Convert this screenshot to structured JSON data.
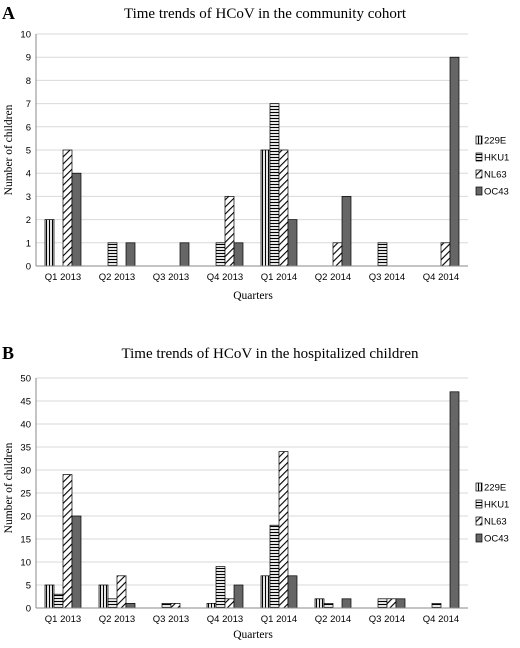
{
  "chart_data": [
    {
      "panel": "A",
      "type": "bar",
      "title": "Time trends of HCoV in the community cohort",
      "xlabel": "Quarters",
      "ylabel": "Number of children",
      "ylim": [
        0,
        10
      ],
      "ytick_step": 1,
      "grid": "horizontal",
      "legend_position": "right",
      "categories": [
        "Q1 2013",
        "Q2 2013",
        "Q3 2013",
        "Q4 2013",
        "Q1 2014",
        "Q2 2014",
        "Q3 2014",
        "Q4 2014"
      ],
      "series": [
        {
          "name": "229E",
          "pattern": "vertical",
          "values": [
            2,
            0,
            0,
            0,
            5,
            0,
            0,
            0
          ]
        },
        {
          "name": "HKU1",
          "pattern": "horizontal",
          "values": [
            0,
            1,
            0,
            1,
            7,
            0,
            1,
            0
          ]
        },
        {
          "name": "NL63",
          "pattern": "diagonal",
          "values": [
            5,
            0,
            0,
            3,
            5,
            1,
            0,
            1
          ]
        },
        {
          "name": "OC43",
          "pattern": "solid",
          "values": [
            4,
            1,
            1,
            1,
            2,
            3,
            0,
            9
          ]
        }
      ]
    },
    {
      "panel": "B",
      "type": "bar",
      "title": "Time trends of HCoV in the hospitalized children",
      "xlabel": "Quarters",
      "ylabel": "Number of children",
      "ylim": [
        0,
        50
      ],
      "ytick_step": 5,
      "grid": "horizontal",
      "legend_position": "right",
      "categories": [
        "Q1 2013",
        "Q2 2013",
        "Q3 2013",
        "Q4 2013",
        "Q1 2014",
        "Q2 2014",
        "Q3 2014",
        "Q4 2014"
      ],
      "series": [
        {
          "name": "229E",
          "pattern": "vertical",
          "values": [
            5,
            5,
            0,
            1,
            7,
            2,
            0,
            0
          ]
        },
        {
          "name": "HKU1",
          "pattern": "horizontal",
          "values": [
            3,
            2,
            1,
            9,
            18,
            1,
            2,
            1
          ]
        },
        {
          "name": "NL63",
          "pattern": "diagonal",
          "values": [
            29,
            7,
            1,
            2,
            34,
            0,
            2,
            0
          ]
        },
        {
          "name": "OC43",
          "pattern": "solid",
          "values": [
            20,
            1,
            0,
            5,
            7,
            2,
            2,
            47
          ]
        }
      ]
    }
  ],
  "colors": {
    "solid": "#666666",
    "gridline": "#d9d9d9",
    "axis": "#888888"
  }
}
